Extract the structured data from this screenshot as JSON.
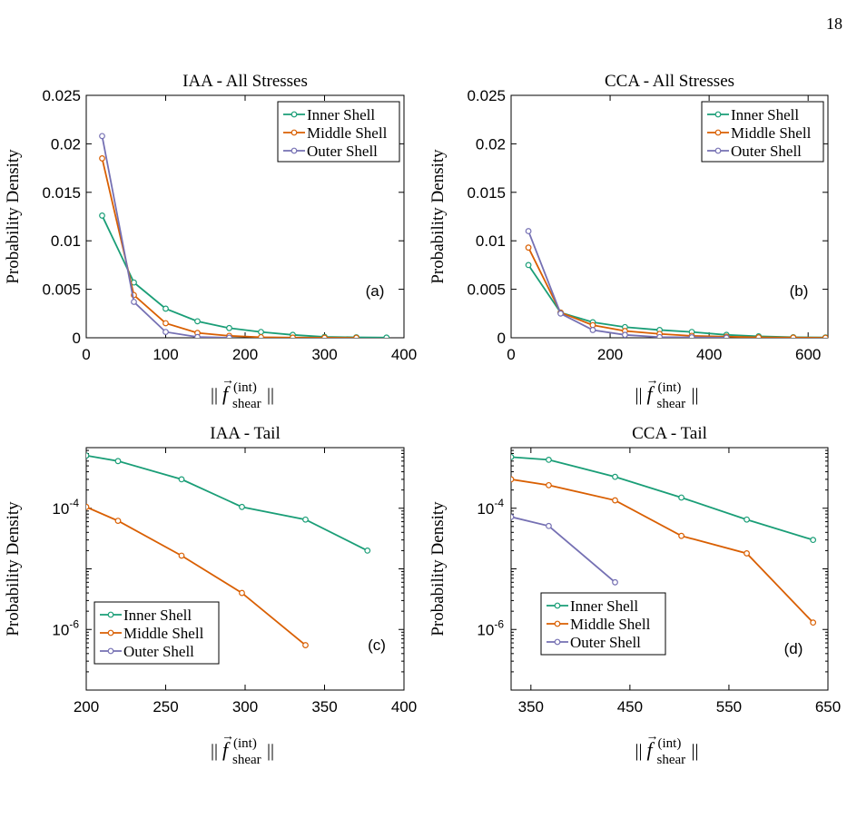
{
  "page": {
    "number": "18"
  },
  "colors": {
    "inner": "#1a9e77",
    "middle": "#d95f02",
    "outer": "#7570b3"
  },
  "chart_data": [
    {
      "type": "line",
      "panel": "(a)",
      "title": "IAA - All Stresses",
      "xlabel": "||f(int) shear||",
      "ylabel": "Probability Density",
      "xlim": [
        0,
        400
      ],
      "ylim": [
        0,
        0.025
      ],
      "yscale": "linear",
      "xticks": [
        0,
        100,
        200,
        300,
        400
      ],
      "yticks": [
        0,
        0.005,
        0.01,
        0.015,
        0.02,
        0.025
      ],
      "xtick_labels": [
        "0",
        "100",
        "200",
        "300",
        "400"
      ],
      "ytick_labels": [
        "0",
        "0.005",
        "0.01",
        "0.015",
        "0.02",
        "0.025"
      ],
      "legend_position": "top-right",
      "series": [
        {
          "name": "Inner Shell",
          "color": "#1a9e77",
          "x": [
            20,
            60,
            100,
            140,
            180,
            220,
            260,
            300,
            340,
            378
          ],
          "y": [
            0.0126,
            0.0057,
            0.003,
            0.0017,
            0.001,
            0.0006,
            0.0003,
            9e-05,
            5e-05,
            2e-05
          ]
        },
        {
          "name": "Middle Shell",
          "color": "#d95f02",
          "x": [
            20,
            60,
            100,
            140,
            180,
            220,
            260,
            300,
            340
          ],
          "y": [
            0.0185,
            0.0044,
            0.0015,
            0.0005,
            0.0002,
            6e-05,
            2e-05,
            4e-06,
            5e-07
          ]
        },
        {
          "name": "Outer Shell",
          "color": "#7570b3",
          "x": [
            20,
            60,
            100,
            140,
            180
          ],
          "y": [
            0.0208,
            0.0037,
            0.0006,
            8e-05,
            1e-05
          ]
        }
      ]
    },
    {
      "type": "line",
      "panel": "(b)",
      "title": "CCA - All Stresses",
      "xlabel": "||f(int) shear||",
      "ylabel": "Probability Density",
      "xlim": [
        0,
        640
      ],
      "ylim": [
        0,
        0.025
      ],
      "yscale": "linear",
      "xticks": [
        0,
        200,
        400,
        600
      ],
      "yticks": [
        0,
        0.005,
        0.01,
        0.015,
        0.02,
        0.025
      ],
      "xtick_labels": [
        "0",
        "200",
        "400",
        "600"
      ],
      "ytick_labels": [
        "0",
        "0.005",
        "0.01",
        "0.015",
        "0.02",
        "0.025"
      ],
      "legend_position": "top-right",
      "series": [
        {
          "name": "Inner Shell",
          "color": "#1a9e77",
          "x": [
            35,
            100,
            165,
            230,
            300,
            365,
            435,
            500,
            570,
            635
          ],
          "y": [
            0.0075,
            0.0026,
            0.0016,
            0.0011,
            0.0008,
            0.0006,
            0.0003,
            0.00015,
            6e-05,
            3e-05
          ]
        },
        {
          "name": "Middle Shell",
          "color": "#d95f02",
          "x": [
            35,
            100,
            165,
            230,
            300,
            365,
            435,
            500,
            570,
            635
          ],
          "y": [
            0.0093,
            0.0026,
            0.0013,
            0.0007,
            0.0004,
            0.0002,
            0.00012,
            4e-05,
            2e-05,
            1e-06
          ]
        },
        {
          "name": "Outer Shell",
          "color": "#7570b3",
          "x": [
            35,
            100,
            165,
            230,
            300,
            365,
            435
          ],
          "y": [
            0.011,
            0.0025,
            0.0008,
            0.0003,
            7e-05,
            5e-05,
            6e-06
          ]
        }
      ]
    },
    {
      "type": "line",
      "panel": "(c)",
      "title": "IAA - Tail",
      "xlabel": "||f(int) shear||",
      "ylabel": "Probability Density",
      "xlim": [
        200,
        400
      ],
      "ylim": [
        1e-07,
        0.001
      ],
      "yscale": "log",
      "xticks": [
        200,
        250,
        300,
        350,
        400
      ],
      "xtick_labels": [
        "200",
        "250",
        "300",
        "350",
        "400"
      ],
      "yticks": [
        1e-06,
        0.0001
      ],
      "ytick_labels": [
        {
          "base": "10",
          "exp": "-6"
        },
        {
          "base": "10",
          "exp": "-4"
        }
      ],
      "legend_position": "bottom-left",
      "series": [
        {
          "name": "Inner Shell",
          "color": "#1a9e77",
          "x": [
            200,
            220,
            260,
            298,
            338,
            377
          ],
          "y": [
            0.00074,
            0.0006,
            0.0003,
            0.000105,
            6.5e-05,
            2e-05
          ]
        },
        {
          "name": "Middle Shell",
          "color": "#d95f02",
          "x": [
            200,
            220,
            260,
            298,
            338
          ],
          "y": [
            0.000105,
            6.2e-05,
            1.65e-05,
            4e-06,
            5.5e-07
          ]
        },
        {
          "name": "Outer Shell",
          "color": "#7570b3",
          "x": [],
          "y": []
        }
      ]
    },
    {
      "type": "line",
      "panel": "(d)",
      "title": "CCA - Tail",
      "xlabel": "||f(int) shear||",
      "ylabel": "Probability Density",
      "xlim": [
        330,
        650
      ],
      "ylim": [
        1e-07,
        0.001
      ],
      "yscale": "log",
      "xticks": [
        350,
        450,
        550,
        650
      ],
      "xtick_labels": [
        "350",
        "450",
        "550",
        "650"
      ],
      "yticks": [
        1e-06,
        0.0001
      ],
      "ytick_labels": [
        {
          "base": "10",
          "exp": "-6"
        },
        {
          "base": "10",
          "exp": "-4"
        }
      ],
      "legend_position": "bottom-left",
      "series": [
        {
          "name": "Inner Shell",
          "color": "#1a9e77",
          "x": [
            330,
            368,
            435,
            502,
            568,
            635
          ],
          "y": [
            0.0007,
            0.00063,
            0.00033,
            0.00015,
            6.5e-05,
            3e-05
          ]
        },
        {
          "name": "Middle Shell",
          "color": "#d95f02",
          "x": [
            330,
            368,
            435,
            502,
            568,
            635
          ],
          "y": [
            0.0003,
            0.00024,
            0.000135,
            3.5e-05,
            1.8e-05,
            1.3e-06
          ]
        },
        {
          "name": "Outer Shell",
          "color": "#7570b3",
          "x": [
            330,
            368,
            435
          ],
          "y": [
            7.2e-05,
            5.1e-05,
            6e-06
          ]
        }
      ]
    }
  ]
}
